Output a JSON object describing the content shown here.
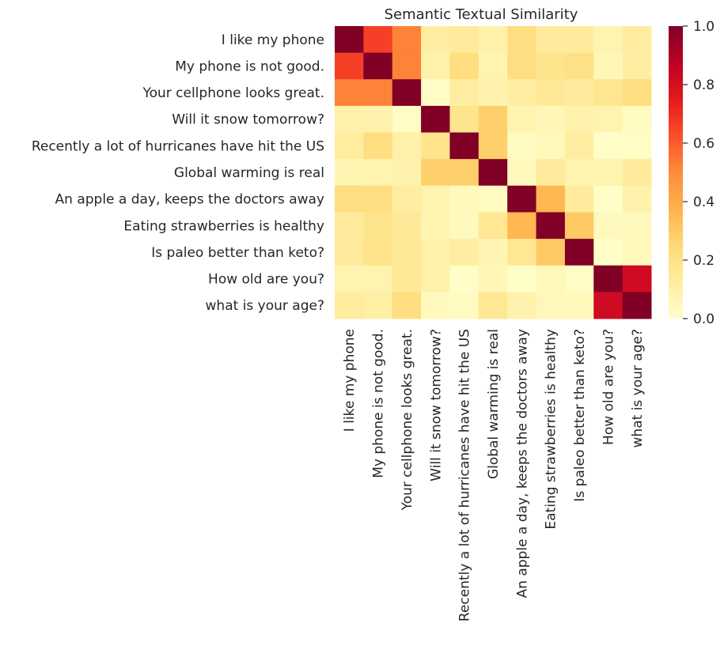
{
  "chart_data": {
    "type": "heatmap",
    "title": "Semantic Textual Similarity",
    "colormap": "YlOrRd",
    "vmin": 0,
    "vmax": 1,
    "colorbar_ticks": [
      "0.0",
      "0.2",
      "0.4",
      "0.6",
      "0.8",
      "1.0"
    ],
    "colorbar_tick_values": [
      0,
      0.2,
      0.4,
      0.6,
      0.8,
      1.0
    ],
    "labels": [
      "I like my phone",
      "My phone is not good.",
      "Your cellphone looks great.",
      "Will it snow tomorrow?",
      "Recently a lot of hurricanes have hit the US",
      "Global warming is real",
      "An apple a day, keeps the doctors away",
      "Eating strawberries is healthy",
      "Is paleo better than keto?",
      "How old are you?",
      "what is your age?"
    ],
    "values": [
      [
        1.0,
        0.66,
        0.52,
        0.12,
        0.14,
        0.1,
        0.22,
        0.14,
        0.14,
        0.08,
        0.13
      ],
      [
        0.66,
        1.0,
        0.52,
        0.1,
        0.22,
        0.08,
        0.22,
        0.18,
        0.2,
        0.06,
        0.12
      ],
      [
        0.52,
        0.52,
        1.0,
        0.02,
        0.12,
        0.09,
        0.12,
        0.15,
        0.14,
        0.17,
        0.22
      ],
      [
        0.1,
        0.09,
        0.02,
        1.0,
        0.18,
        0.28,
        0.08,
        0.06,
        0.09,
        0.08,
        0.03
      ],
      [
        0.13,
        0.22,
        0.1,
        0.18,
        1.0,
        0.28,
        0.03,
        0.05,
        0.12,
        0.01,
        0.02
      ],
      [
        0.07,
        0.08,
        0.09,
        0.28,
        0.28,
        1.0,
        0.04,
        0.14,
        0.08,
        0.08,
        0.14
      ],
      [
        0.22,
        0.22,
        0.12,
        0.08,
        0.04,
        0.03,
        1.0,
        0.36,
        0.14,
        0.01,
        0.09
      ],
      [
        0.14,
        0.18,
        0.15,
        0.07,
        0.04,
        0.16,
        0.36,
        1.0,
        0.3,
        0.04,
        0.04
      ],
      [
        0.14,
        0.19,
        0.15,
        0.1,
        0.12,
        0.07,
        0.16,
        0.3,
        1.0,
        0.01,
        0.04
      ],
      [
        0.08,
        0.08,
        0.15,
        0.1,
        0.01,
        0.06,
        0.01,
        0.05,
        0.02,
        1.0,
        0.82
      ],
      [
        0.13,
        0.11,
        0.22,
        0.04,
        0.03,
        0.16,
        0.09,
        0.05,
        0.05,
        0.82,
        1.0
      ]
    ]
  }
}
